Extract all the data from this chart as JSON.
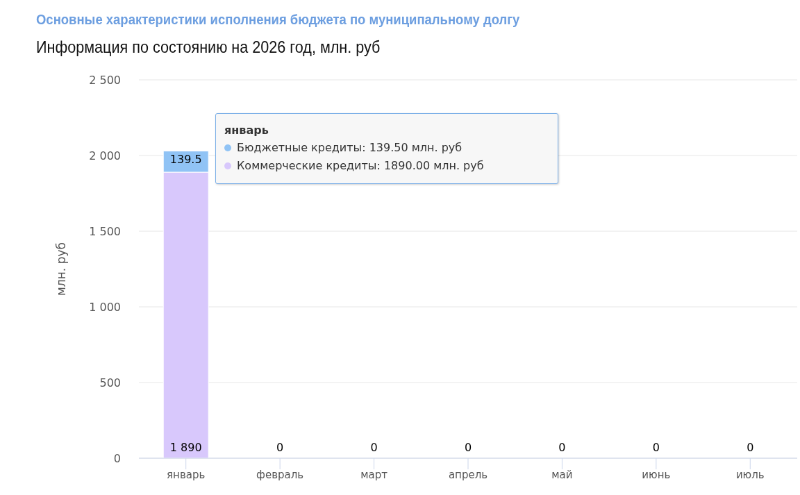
{
  "chart_data": {
    "type": "bar",
    "title": "Основные характеристики исполнения бюджета по муниципальному долгу",
    "subtitle": "Информация по состоянию на 2026 год, млн. руб",
    "ylabel": "млн. руб",
    "categories": [
      "январь",
      "февраль",
      "март",
      "апрель",
      "май",
      "июнь",
      "июль"
    ],
    "series": [
      {
        "color": "#d8c8fc",
        "values": [
          1890,
          0,
          0,
          0,
          0,
          0,
          0
        ],
        "value_labels": [
          "1 890",
          "0",
          "0",
          "0",
          "0",
          "0",
          "0"
        ]
      },
      {
        "color": "#90c3f5",
        "values": [
          139.5,
          0,
          0,
          0,
          0,
          0,
          0
        ],
        "value_labels": [
          "139.5",
          null,
          null,
          null,
          null,
          null,
          null
        ]
      }
    ],
    "stacked": true,
    "ylim": [
      0,
      2500
    ],
    "yticks": [
      0,
      {
        "value": 500,
        "label": "500"
      },
      {
        "value": 1000,
        "label": "1 000"
      },
      {
        "value": 1500,
        "label": "1 500"
      },
      {
        "value": 2000,
        "label": "2 000"
      },
      {
        "value": 2500,
        "label": "2 500"
      }
    ],
    "grid": "y",
    "annotations": [
      "январь",
      "Бюджетные кредиты: 139.50 млн. руб",
      "Коммерческие кредиты: 1890.00 млн. руб"
    ]
  }
}
